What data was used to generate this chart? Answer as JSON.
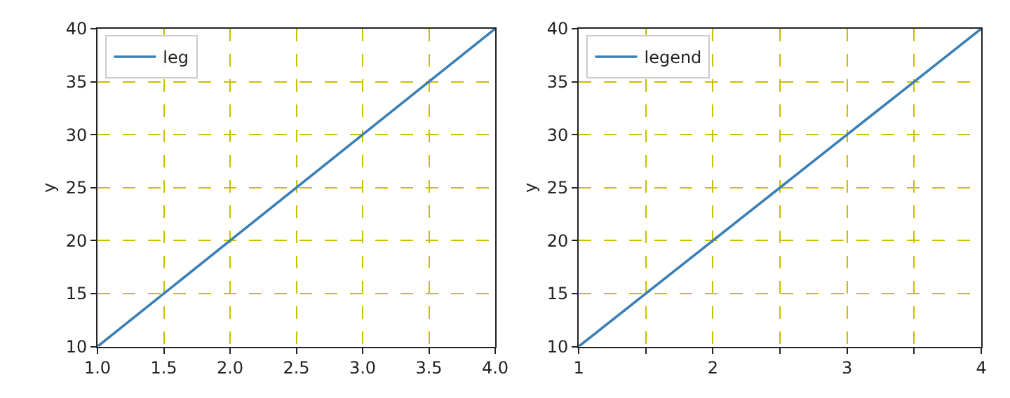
{
  "chart_data": [
    {
      "type": "line",
      "ylabel": "y",
      "x": [
        1,
        2,
        3,
        4
      ],
      "series": [
        {
          "name": "leg",
          "color": "#3a7fb5",
          "values": [
            10,
            20,
            30,
            40
          ]
        }
      ],
      "xlim": [
        1.0,
        4.0
      ],
      "xticks": [
        {
          "value": 1,
          "label": "1.0"
        },
        {
          "value": 1.5,
          "label": "1.5"
        },
        {
          "value": 2,
          "label": "2.0"
        },
        {
          "value": 2.5,
          "label": "2.5"
        },
        {
          "value": 3,
          "label": "3.0"
        },
        {
          "value": 3.5,
          "label": "3.5"
        },
        {
          "value": 4,
          "label": "4.0"
        }
      ],
      "ylim": [
        10,
        40
      ],
      "yticks": [
        10,
        15,
        20,
        25,
        30,
        35,
        40
      ],
      "grid": true,
      "legend": "top left",
      "line_style": "solid",
      "marker": "none"
    },
    {
      "type": "line",
      "ylabel": "y",
      "x": [
        1,
        2,
        3,
        4
      ],
      "series": [
        {
          "name": "legend",
          "color": "#3a7fb5",
          "values": [
            10,
            20,
            30,
            40
          ]
        }
      ],
      "xlim": [
        1,
        4
      ],
      "xticks": [
        1,
        {
          "value": 1.5,
          "label": null
        },
        2,
        {
          "value": 2.5,
          "label": null
        },
        3,
        {
          "value": 3.5,
          "label": null
        },
        4
      ],
      "ylim": [
        10,
        40
      ],
      "yticks": [
        10,
        15,
        20,
        25,
        30,
        35,
        40
      ],
      "grid": true,
      "legend": "top left",
      "line_style": "solid",
      "marker": "none"
    }
  ]
}
